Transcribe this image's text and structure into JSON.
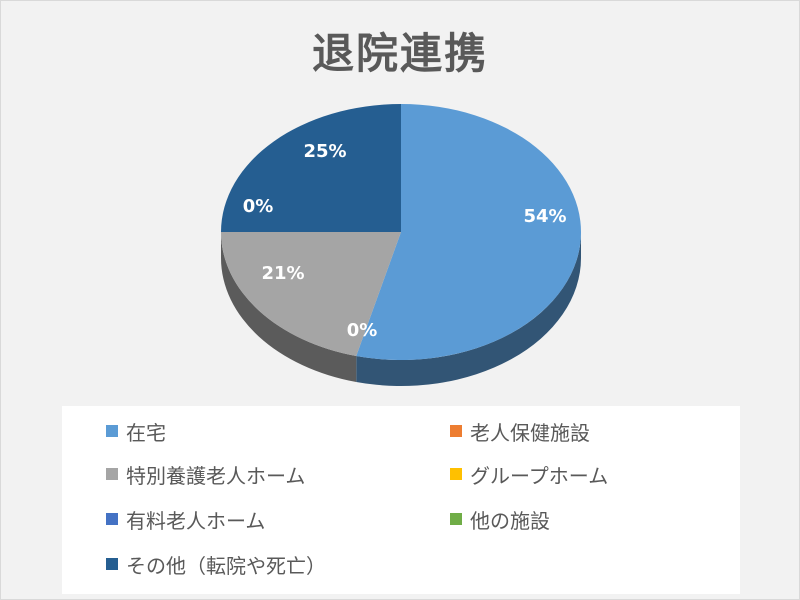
{
  "chart_data": {
    "type": "pie",
    "title": "退院連携",
    "legend_position": "bottom",
    "slices": [
      {
        "label": "在宅",
        "value": 54,
        "value_label": "54%",
        "color": "#5b9bd5"
      },
      {
        "label": "老人保健施設",
        "value": 0,
        "value_label": "0%",
        "color": "#ed7d31"
      },
      {
        "label": "特別養護老人ホーム",
        "value": 21,
        "value_label": "21%",
        "color": "#a5a5a5"
      },
      {
        "label": "グループホーム",
        "value": 0,
        "value_label": "",
        "color": "#ffc000"
      },
      {
        "label": "有料老人ホーム",
        "value": 0,
        "value_label": "0%",
        "color": "#4472c4"
      },
      {
        "label": "他の施設",
        "value": 0,
        "value_label": "",
        "color": "#70ad47"
      },
      {
        "label": "その他（転院や死亡）",
        "value": 25,
        "value_label": "25%",
        "color": "#255e91"
      }
    ]
  }
}
